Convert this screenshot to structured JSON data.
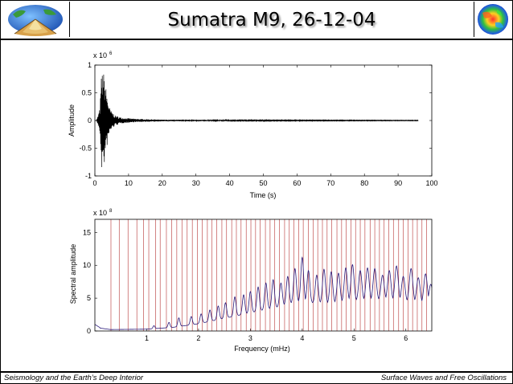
{
  "title": "Sumatra M9, 26-12-04",
  "footer": {
    "left": "Seismology and the Earth’s Deep Interior",
    "right": "Surface Waves and Free Oscillations"
  },
  "logos": {
    "left": "earth-cutaway-logo",
    "right": "earth-tomography-logo"
  },
  "chart_data": [
    {
      "type": "line",
      "xlabel": "Time (s)",
      "ylabel": "Amplitude",
      "exponent_label": "x 10",
      "exponent": "6",
      "xlim": [
        0,
        100
      ],
      "ylim": [
        -1,
        1
      ],
      "xticks": [
        "0",
        "10",
        "20",
        "30",
        "40",
        "50",
        "60",
        "70",
        "80",
        "90",
        "100"
      ],
      "yticks": [
        "-1",
        "-0.5",
        "0",
        "0.5",
        "1"
      ],
      "signal_end_x": 96,
      "envelope": {
        "x": [
          0.5,
          1.5,
          2,
          2.7,
          3.5,
          4.5,
          6,
          8,
          12,
          20,
          40,
          96
        ],
        "y": [
          0.0,
          0.22,
          0.9,
          0.85,
          0.5,
          0.2,
          0.09,
          0.05,
          0.03,
          0.015,
          0.01,
          0.005
        ]
      }
    },
    {
      "type": "line",
      "xlabel": "Frequency (mHz)",
      "ylabel": "Spectral amplitude",
      "exponent_label": "x 10",
      "exponent": "8",
      "xlim": [
        0,
        6.5
      ],
      "ylim": [
        0,
        17
      ],
      "xticks": [
        "1",
        "2",
        "3",
        "4",
        "5",
        "6"
      ],
      "yticks": [
        "0",
        "5",
        "10",
        "15"
      ],
      "mode_lines_mhz": [
        0.31,
        0.47,
        0.64,
        0.81,
        0.94,
        1.04,
        1.17,
        1.26,
        1.38,
        1.48,
        1.58,
        1.68,
        1.78,
        1.88,
        1.98,
        2.07,
        2.17,
        2.26,
        2.35,
        2.45,
        2.54,
        2.64,
        2.73,
        2.82,
        2.92,
        3.01,
        3.1,
        3.19,
        3.29,
        3.38,
        3.47,
        3.56,
        3.66,
        3.75,
        3.84,
        3.93,
        4.02,
        4.12,
        4.21,
        4.3,
        4.39,
        4.48,
        4.57,
        4.67,
        4.76,
        4.85,
        4.94,
        5.03,
        5.12,
        5.21,
        5.31,
        5.4,
        5.49,
        5.58,
        5.67,
        5.76,
        5.86,
        5.95,
        6.04,
        6.13,
        6.22,
        6.31,
        6.4
      ],
      "spectrum_envelope": {
        "x": [
          0,
          0.3,
          1.0,
          1.5,
          2.0,
          2.5,
          3.0,
          3.5,
          3.9,
          4.5,
          5.0,
          5.5,
          6.0,
          6.5
        ],
        "y": [
          1.0,
          0.4,
          0.5,
          1.0,
          2.0,
          3.5,
          5.0,
          6.5,
          8.0,
          7.5,
          8.3,
          8.5,
          8.0,
          7.2
        ]
      },
      "spectrum_peaks": [
        {
          "x": 1.14,
          "y": 0.8
        },
        {
          "x": 1.43,
          "y": 1.3
        },
        {
          "x": 1.62,
          "y": 2.0
        },
        {
          "x": 1.86,
          "y": 2.2
        },
        {
          "x": 2.05,
          "y": 2.6
        },
        {
          "x": 2.22,
          "y": 3.2
        },
        {
          "x": 2.38,
          "y": 3.8
        },
        {
          "x": 2.52,
          "y": 4.3
        },
        {
          "x": 2.7,
          "y": 5.2
        },
        {
          "x": 2.87,
          "y": 5.5
        },
        {
          "x": 3.0,
          "y": 6.0
        },
        {
          "x": 3.15,
          "y": 6.7
        },
        {
          "x": 3.3,
          "y": 7.3
        },
        {
          "x": 3.44,
          "y": 7.8
        },
        {
          "x": 3.59,
          "y": 7.3
        },
        {
          "x": 3.72,
          "y": 8.3
        },
        {
          "x": 3.86,
          "y": 9.5
        },
        {
          "x": 4.0,
          "y": 11.2
        },
        {
          "x": 4.12,
          "y": 9.2
        },
        {
          "x": 4.28,
          "y": 8.5
        },
        {
          "x": 4.42,
          "y": 9.4
        },
        {
          "x": 4.56,
          "y": 9.0
        },
        {
          "x": 4.7,
          "y": 8.8
        },
        {
          "x": 4.84,
          "y": 9.6
        },
        {
          "x": 4.97,
          "y": 10.1
        },
        {
          "x": 5.12,
          "y": 9.2
        },
        {
          "x": 5.26,
          "y": 9.6
        },
        {
          "x": 5.4,
          "y": 9.5
        },
        {
          "x": 5.55,
          "y": 8.5
        },
        {
          "x": 5.68,
          "y": 9.2
        },
        {
          "x": 5.82,
          "y": 9.9
        },
        {
          "x": 5.95,
          "y": 8.3
        },
        {
          "x": 6.1,
          "y": 9.5
        },
        {
          "x": 6.24,
          "y": 8.1
        },
        {
          "x": 6.38,
          "y": 8.7
        },
        {
          "x": 6.48,
          "y": 7.1
        }
      ]
    }
  ],
  "colors": {
    "signal": "#000000",
    "spectrum": "#2a1a7a",
    "mode_lines": "#c05050",
    "axes": "#000000"
  }
}
